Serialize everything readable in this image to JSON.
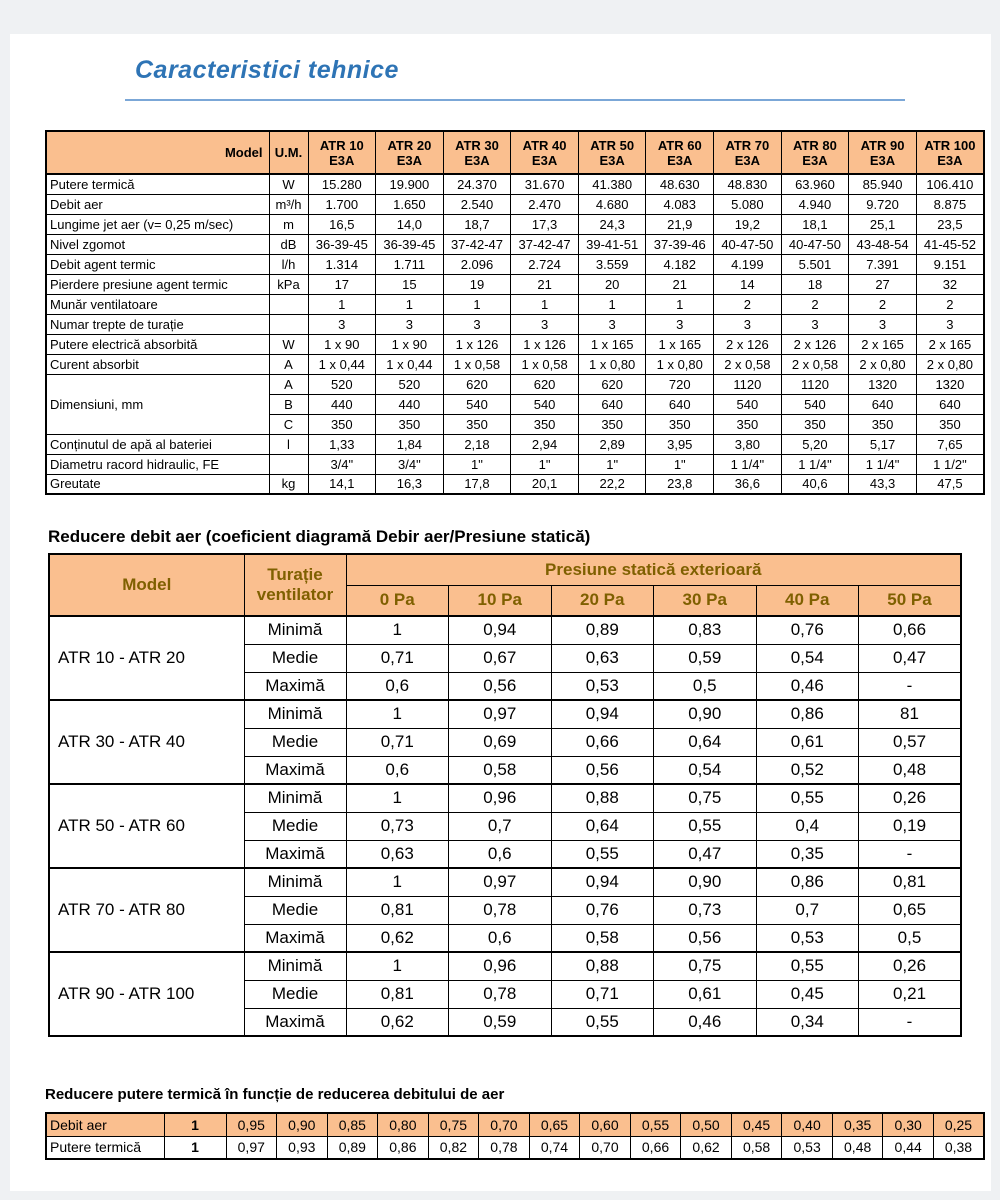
{
  "page": {
    "title": "Caracteristici tehnice"
  },
  "colors": {
    "accent_orange": "#FABF8F",
    "header_text_olive": "#7F6000",
    "title_blue": "#2E74B5",
    "rule_blue": "#7BA7D7"
  },
  "spec_table": {
    "header": {
      "model_label": "Model",
      "um_label": "U.M.",
      "columns": [
        "ATR 10\nE3A",
        "ATR 20\nE3A",
        "ATR 30\nE3A",
        "ATR 40\nE3A",
        "ATR 50\nE3A",
        "ATR 60\nE3A",
        "ATR 70\nE3A",
        "ATR 80\nE3A",
        "ATR 90\nE3A",
        "ATR 100\nE3A"
      ]
    },
    "rows": [
      {
        "label": "Putere termică",
        "um": "W",
        "values": [
          "15.280",
          "19.900",
          "24.370",
          "31.670",
          "41.380",
          "48.630",
          "48.830",
          "63.960",
          "85.940",
          "106.410"
        ]
      },
      {
        "label": "Debit aer",
        "um": "m³/h",
        "values": [
          "1.700",
          "1.650",
          "2.540",
          "2.470",
          "4.680",
          "4.083",
          "5.080",
          "4.940",
          "9.720",
          "8.875"
        ]
      },
      {
        "label": "Lungime jet aer (v= 0,25 m/sec)",
        "um": "m",
        "values": [
          "16,5",
          "14,0",
          "18,7",
          "17,3",
          "24,3",
          "21,9",
          "19,2",
          "18,1",
          "25,1",
          "23,5"
        ]
      },
      {
        "label": "Nivel zgomot",
        "um": "dB",
        "values": [
          "36-39-45",
          "36-39-45",
          "37-42-47",
          "37-42-47",
          "39-41-51",
          "37-39-46",
          "40-47-50",
          "40-47-50",
          "43-48-54",
          "41-45-52"
        ]
      },
      {
        "label": "Debit agent termic",
        "um": "l/h",
        "values": [
          "1.314",
          "1.711",
          "2.096",
          "2.724",
          "3.559",
          "4.182",
          "4.199",
          "5.501",
          "7.391",
          "9.151"
        ]
      },
      {
        "label": "Pierdere presiune agent termic",
        "um": "kPa",
        "values": [
          "17",
          "15",
          "19",
          "21",
          "20",
          "21",
          "14",
          "18",
          "27",
          "32"
        ]
      },
      {
        "label": "Munăr ventilatoare",
        "um": "",
        "values": [
          "1",
          "1",
          "1",
          "1",
          "1",
          "1",
          "2",
          "2",
          "2",
          "2"
        ]
      },
      {
        "label": "Numar trepte de turație",
        "um": "",
        "values": [
          "3",
          "3",
          "3",
          "3",
          "3",
          "3",
          "3",
          "3",
          "3",
          "3"
        ]
      },
      {
        "label": "Putere electrică absorbită",
        "um": "W",
        "values": [
          "1 x 90",
          "1 x 90",
          "1 x 126",
          "1 x 126",
          "1 x 165",
          "1 x 165",
          "2 x 126",
          "2 x 126",
          "2 x 165",
          "2 x 165"
        ]
      },
      {
        "label": "Curent absorbit",
        "um": "A",
        "values": [
          "1 x 0,44",
          "1 x 0,44",
          "1 x 0,58",
          "1 x 0,58",
          "1 x 0,80",
          "1 x 0,80",
          "2 x 0,58",
          "2 x 0,58",
          "2 x 0,80",
          "2 x 0,80"
        ]
      },
      {
        "label": "Dimensiuni, mm",
        "subrows": [
          {
            "um": "A",
            "values": [
              "520",
              "520",
              "620",
              "620",
              "620",
              "720",
              "1120",
              "1120",
              "1320",
              "1320"
            ]
          },
          {
            "um": "B",
            "values": [
              "440",
              "440",
              "540",
              "540",
              "640",
              "640",
              "540",
              "540",
              "640",
              "640"
            ]
          },
          {
            "um": "C",
            "values": [
              "350",
              "350",
              "350",
              "350",
              "350",
              "350",
              "350",
              "350",
              "350",
              "350"
            ]
          }
        ]
      },
      {
        "label": "Conținutul de apă al bateriei",
        "um": "l",
        "values": [
          "1,33",
          "1,84",
          "2,18",
          "2,94",
          "2,89",
          "3,95",
          "3,80",
          "5,20",
          "5,17",
          "7,65"
        ]
      },
      {
        "label": "Diametru racord hidraulic, FE",
        "um": "",
        "values": [
          "3/4\"",
          "3/4\"",
          "1\"",
          "1\"",
          "1\"",
          "1\"",
          "1 1/4\"",
          "1 1/4\"",
          "1 1/4\"",
          "1 1/2\""
        ]
      },
      {
        "label": "Greutate",
        "um": "kg",
        "values": [
          "14,1",
          "16,3",
          "17,8",
          "20,1",
          "22,2",
          "23,8",
          "36,6",
          "40,6",
          "43,3",
          "47,5"
        ]
      }
    ]
  },
  "airflow_table": {
    "caption": "Reducere debit aer (coeficient diagramă Debir aer/Presiune statică)",
    "header": {
      "model_label": "Model",
      "speed_label": "Turație\nventilator",
      "pressure_label": "Presiune statică exterioară",
      "pa_columns": [
        "0 Pa",
        "10 Pa",
        "20 Pa",
        "30 Pa",
        "40 Pa",
        "50 Pa"
      ]
    },
    "groups": [
      {
        "model": "ATR 10 - ATR 20",
        "rows": [
          {
            "speed": "Minimă",
            "values": [
              "1",
              "0,94",
              "0,89",
              "0,83",
              "0,76",
              "0,66"
            ]
          },
          {
            "speed": "Medie",
            "values": [
              "0,71",
              "0,67",
              "0,63",
              "0,59",
              "0,54",
              "0,47"
            ]
          },
          {
            "speed": "Maximă",
            "values": [
              "0,6",
              "0,56",
              "0,53",
              "0,5",
              "0,46",
              "-"
            ]
          }
        ]
      },
      {
        "model": "ATR 30 - ATR 40",
        "rows": [
          {
            "speed": "Minimă",
            "values": [
              "1",
              "0,97",
              "0,94",
              "0,90",
              "0,86",
              "81"
            ]
          },
          {
            "speed": "Medie",
            "values": [
              "0,71",
              "0,69",
              "0,66",
              "0,64",
              "0,61",
              "0,57"
            ]
          },
          {
            "speed": "Maximă",
            "values": [
              "0,6",
              "0,58",
              "0,56",
              "0,54",
              "0,52",
              "0,48"
            ]
          }
        ]
      },
      {
        "model": "ATR 50 - ATR 60",
        "rows": [
          {
            "speed": "Minimă",
            "values": [
              "1",
              "0,96",
              "0,88",
              "0,75",
              "0,55",
              "0,26"
            ]
          },
          {
            "speed": "Medie",
            "values": [
              "0,73",
              "0,7",
              "0,64",
              "0,55",
              "0,4",
              "0,19"
            ]
          },
          {
            "speed": "Maximă",
            "values": [
              "0,63",
              "0,6",
              "0,55",
              "0,47",
              "0,35",
              "-"
            ]
          }
        ]
      },
      {
        "model": "ATR 70 - ATR 80",
        "rows": [
          {
            "speed": "Minimă",
            "values": [
              "1",
              "0,97",
              "0,94",
              "0,90",
              "0,86",
              "0,81"
            ]
          },
          {
            "speed": "Medie",
            "values": [
              "0,81",
              "0,78",
              "0,76",
              "0,73",
              "0,7",
              "0,65"
            ]
          },
          {
            "speed": "Maximă",
            "values": [
              "0,62",
              "0,6",
              "0,58",
              "0,56",
              "0,53",
              "0,5"
            ]
          }
        ]
      },
      {
        "model": "ATR 90 - ATR 100",
        "rows": [
          {
            "speed": "Minimă",
            "values": [
              "1",
              "0,96",
              "0,88",
              "0,75",
              "0,55",
              "0,26"
            ]
          },
          {
            "speed": "Medie",
            "values": [
              "0,81",
              "0,78",
              "0,71",
              "0,61",
              "0,45",
              "0,21"
            ]
          },
          {
            "speed": "Maximă",
            "values": [
              "0,62",
              "0,59",
              "0,55",
              "0,46",
              "0,34",
              "-"
            ]
          }
        ]
      }
    ]
  },
  "power_reduction_table": {
    "caption": "Reducere putere termică în funcție de reducerea debitului de aer",
    "rows": [
      {
        "label": "Debit aer",
        "highlighted": true,
        "values": [
          "1",
          "0,95",
          "0,90",
          "0,85",
          "0,80",
          "0,75",
          "0,70",
          "0,65",
          "0,60",
          "0,55",
          "0,50",
          "0,45",
          "0,40",
          "0,35",
          "0,30",
          "0,25"
        ]
      },
      {
        "label": "Putere termică",
        "highlighted": false,
        "values": [
          "1",
          "0,97",
          "0,93",
          "0,89",
          "0,86",
          "0,82",
          "0,78",
          "0,74",
          "0,70",
          "0,66",
          "0,62",
          "0,58",
          "0,53",
          "0,48",
          "0,44",
          "0,38"
        ]
      }
    ]
  }
}
